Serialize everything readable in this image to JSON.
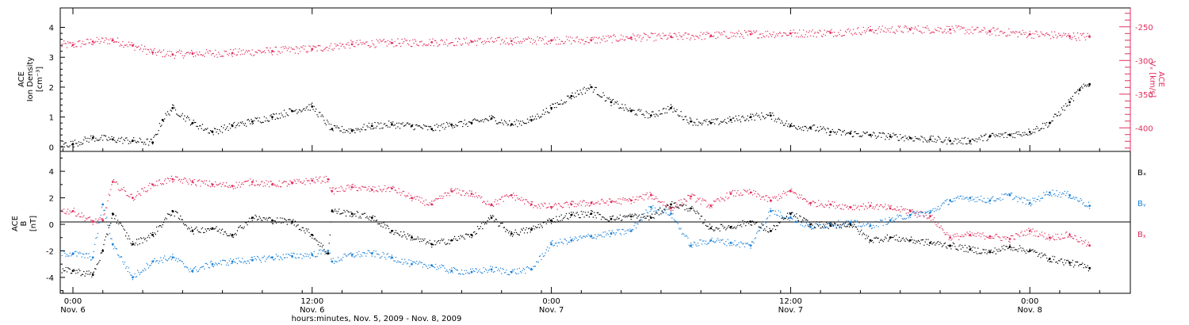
{
  "colors": {
    "black": "#000000",
    "red": "#e02e5c",
    "blue": "#1c82d9"
  },
  "chart_data": [
    {
      "type": "scatter",
      "panel": "top",
      "ylabel_lines": [
        "ACE",
        "Ion Density",
        "[cm⁻³]"
      ],
      "ylim": [
        -0.15,
        4.65
      ],
      "yticks": [
        "0",
        "1",
        "2",
        "3",
        "4"
      ],
      "y2label_lines": [
        "ACE",
        "Vₓ [km/s]"
      ],
      "y2lim": [
        -435,
        -222
      ],
      "y2ticks": [
        "-250",
        "-300",
        "-350",
        "-400"
      ],
      "series": [
        {
          "color": "#000000",
          "x_hours": [
            0,
            1,
            2,
            3,
            4,
            4.5,
            5,
            6,
            7,
            8,
            9,
            10,
            11,
            12,
            13,
            14,
            15,
            16,
            17,
            18,
            19,
            20,
            21,
            22,
            23,
            24,
            25,
            26,
            27,
            28,
            29,
            30,
            31,
            32,
            33,
            34,
            35,
            36,
            37,
            38,
            39,
            40,
            41,
            42,
            43,
            44,
            45,
            46,
            47,
            48,
            49,
            50,
            50.5,
            51
          ],
          "values": [
            0.1,
            0.3,
            0.25,
            0.2,
            0.15,
            0.9,
            1.3,
            0.8,
            0.5,
            0.7,
            0.85,
            1.0,
            1.2,
            1.35,
            0.6,
            0.55,
            0.7,
            0.75,
            0.7,
            0.6,
            0.75,
            0.8,
            0.95,
            0.75,
            0.9,
            1.3,
            1.7,
            2.0,
            1.5,
            1.2,
            1.05,
            1.3,
            0.85,
            0.8,
            0.9,
            1.0,
            1.05,
            0.7,
            0.65,
            0.5,
            0.45,
            0.4,
            0.35,
            0.3,
            0.25,
            0.2,
            0.2,
            0.35,
            0.4,
            0.5,
            0.8,
            1.5,
            1.9,
            2.1
          ]
        },
        {
          "color": "#e02e5c",
          "axis": "right",
          "x_hours": [
            0,
            1,
            2,
            3,
            4,
            5,
            6,
            8,
            10,
            12,
            14,
            16,
            18,
            20,
            22,
            24,
            26,
            28,
            30,
            32,
            34,
            36,
            38,
            40,
            42,
            44,
            46,
            48,
            50,
            51
          ],
          "values": [
            -277,
            -272,
            -270,
            -278,
            -288,
            -291,
            -290,
            -289,
            -286,
            -283,
            -276,
            -274,
            -273,
            -272,
            -271,
            -270,
            -270,
            -266,
            -265,
            -263,
            -261,
            -260,
            -259,
            -255,
            -254,
            -254,
            -257,
            -261,
            -264,
            -265
          ]
        }
      ]
    },
    {
      "type": "scatter",
      "panel": "bottom",
      "ylabel_lines": [
        "ACE",
        "B",
        "[nT]"
      ],
      "ylim": [
        -5.2,
        5.5
      ],
      "yticks": [
        "4",
        "2",
        "0",
        "-2",
        "-4"
      ],
      "legend": [
        "Bₓ",
        "Bᵧ",
        "Bᵪ"
      ],
      "legend_position": "right",
      "xlabel": "hours:minutes, Nov.  5, 2009 - Nov.  8, 2009",
      "xticks": [
        {
          "time": "0:00",
          "date": "Nov. 6"
        },
        {
          "time": "12:00",
          "date": "Nov. 6"
        },
        {
          "time": "0:00",
          "date": "Nov. 7"
        },
        {
          "time": "12:00",
          "date": "Nov. 7"
        },
        {
          "time": "0:00",
          "date": "Nov. 8"
        }
      ],
      "series": [
        {
          "name": "Bx",
          "color": "#000000",
          "x_hours": [
            0,
            1,
            1.5,
            2,
            3,
            4,
            5,
            6,
            7,
            8,
            9,
            10,
            11,
            12,
            12.8,
            13,
            14,
            15,
            16,
            17,
            18,
            19,
            20,
            21,
            22,
            23,
            24,
            25,
            26,
            27,
            28,
            29,
            30,
            31,
            32,
            33,
            34,
            35,
            36,
            37,
            38,
            39,
            40,
            41,
            42,
            43,
            44,
            45,
            46,
            47,
            48,
            49,
            50,
            51
          ],
          "values": [
            -3.5,
            -3.8,
            -2.0,
            0.8,
            -1.5,
            -0.8,
            1.0,
            -0.5,
            -0.3,
            -0.8,
            0.5,
            0.3,
            0.2,
            -0.8,
            -2.2,
            1.0,
            0.8,
            0.5,
            -0.5,
            -1.0,
            -1.5,
            -1.2,
            -0.8,
            0.5,
            -0.7,
            -0.4,
            0.3,
            0.7,
            0.8,
            0.4,
            0.6,
            0.5,
            1.5,
            1.2,
            -0.3,
            -0.2,
            0.2,
            -0.5,
            0.8,
            0.0,
            -0.1,
            0.0,
            -1.2,
            -1.0,
            -1.2,
            -1.4,
            -1.6,
            -1.9,
            -2.1,
            -1.7,
            -2.0,
            -2.6,
            -2.9,
            -3.3
          ]
        },
        {
          "name": "By",
          "color": "#1c82d9",
          "x_hours": [
            0,
            1,
            1.5,
            2,
            3,
            4,
            5,
            6,
            7,
            8,
            9,
            10,
            11,
            12,
            12.8,
            13,
            14,
            15,
            16,
            17,
            18,
            19,
            20,
            21,
            22,
            23,
            24,
            25,
            26,
            27,
            28,
            29,
            30,
            31,
            32,
            33,
            34,
            35,
            36,
            37,
            38,
            39,
            40,
            41,
            42,
            43,
            44,
            45,
            46,
            47,
            48,
            49,
            50,
            51
          ],
          "values": [
            -2.2,
            -2.5,
            1.5,
            -1.5,
            -4.0,
            -2.8,
            -2.5,
            -3.5,
            -3.0,
            -2.8,
            -2.7,
            -2.5,
            -2.4,
            -2.3,
            -2.0,
            -2.8,
            -2.3,
            -2.2,
            -2.5,
            -3.0,
            -3.1,
            -3.5,
            -3.6,
            -3.4,
            -3.6,
            -3.4,
            -1.5,
            -1.2,
            -0.9,
            -0.7,
            -0.5,
            1.3,
            0.8,
            -1.6,
            -1.2,
            -1.4,
            -1.6,
            1.0,
            0.5,
            -0.2,
            0.0,
            0.1,
            -0.1,
            0.3,
            0.7,
            0.9,
            1.8,
            2.0,
            1.8,
            2.2,
            1.6,
            2.4,
            2.2,
            1.4
          ]
        },
        {
          "name": "Bz",
          "color": "#e02e5c",
          "x_hours": [
            0,
            1,
            1.5,
            2,
            3,
            4,
            5,
            6,
            7,
            8,
            9,
            10,
            11,
            12,
            12.8,
            13,
            14,
            15,
            16,
            17,
            18,
            19,
            20,
            21,
            22,
            23,
            24,
            25,
            26,
            27,
            28,
            29,
            30,
            31,
            32,
            33,
            34,
            35,
            36,
            37,
            38,
            39,
            40,
            41,
            42,
            43,
            44,
            45,
            46,
            47,
            48,
            49,
            50,
            51
          ],
          "values": [
            1.0,
            0.2,
            0.3,
            3.2,
            2.0,
            3.0,
            3.4,
            3.2,
            3.0,
            2.9,
            3.2,
            3.0,
            3.1,
            3.3,
            3.4,
            2.5,
            2.8,
            2.6,
            2.7,
            2.0,
            1.5,
            2.5,
            2.3,
            1.5,
            2.2,
            1.5,
            1.3,
            1.5,
            1.6,
            1.7,
            1.8,
            2.2,
            1.2,
            2.1,
            1.4,
            2.3,
            2.4,
            1.8,
            2.5,
            1.6,
            1.5,
            1.3,
            1.4,
            1.2,
            1.0,
            0.6,
            -1.0,
            -0.8,
            -0.9,
            -1.1,
            -0.5,
            -1.0,
            -0.8,
            -1.6
          ]
        }
      ]
    }
  ]
}
